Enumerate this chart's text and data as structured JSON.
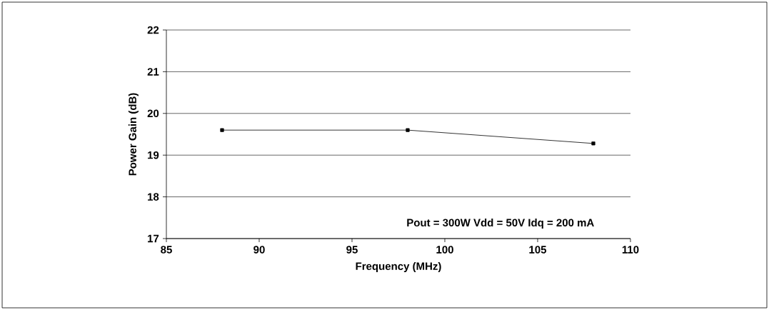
{
  "chart_data": {
    "type": "line",
    "xlabel": "Frequency (MHz)",
    "ylabel": "Power Gain (dB)",
    "x": [
      88,
      98,
      108
    ],
    "series": [
      {
        "color": "#000000",
        "values": [
          19.6,
          19.6,
          19.28
        ]
      }
    ],
    "xlim": [
      85,
      110
    ],
    "xticks": [
      85,
      90,
      95,
      100,
      105,
      110
    ],
    "ylim": [
      17,
      22
    ],
    "yticks": [
      17,
      18,
      19,
      20,
      21,
      22
    ],
    "grid": "y",
    "marker": "square",
    "line_style": "solid",
    "annotations": [
      "Pout = 300W   Vdd = 50V   Idq = 200 mA"
    ]
  }
}
